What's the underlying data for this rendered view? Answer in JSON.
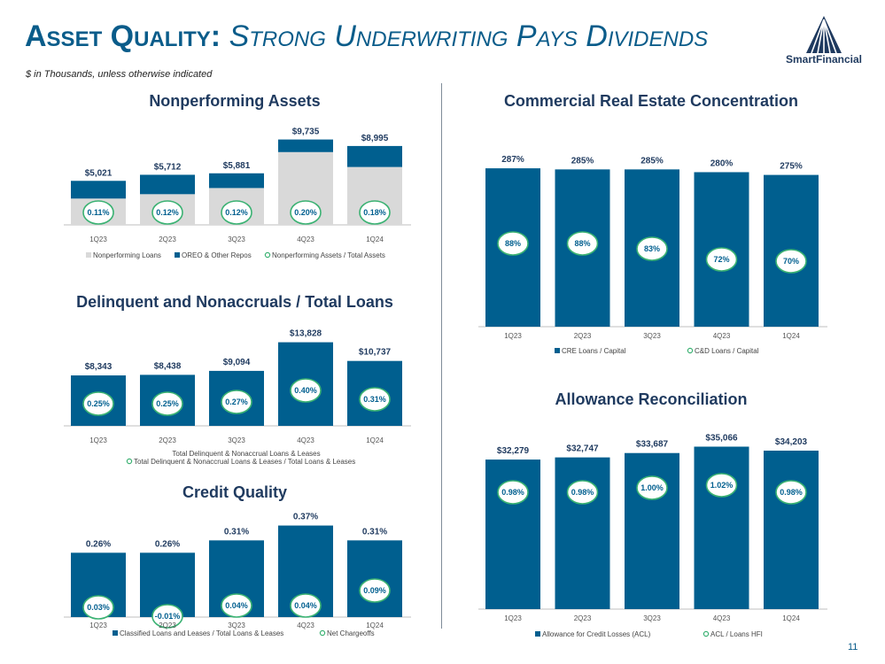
{
  "header": {
    "title_main": "Asset Quality:",
    "title_sub": "Strong Underwriting Pays Dividends",
    "subtitle": "$ in Thousands, unless otherwise indicated",
    "logo_text": "SmartFinancial",
    "page_number": "11"
  },
  "colors": {
    "bar": "#005f8f",
    "light_bar": "#d9d9d9",
    "circle_border": "#3bb273",
    "label": "#1f3a5f"
  },
  "chart_data": [
    {
      "id": "npa",
      "type": "bar",
      "stacked": true,
      "title": "Nonperforming Assets",
      "categories": [
        "1Q23",
        "2Q23",
        "3Q23",
        "4Q23",
        "1Q24"
      ],
      "series": [
        {
          "name": "Nonperforming Loans",
          "values": [
            3000,
            3500,
            4200,
            8300,
            6600
          ]
        },
        {
          "name": "OREO & Other Repos",
          "values": [
            2021,
            2212,
            1681,
            1435,
            2395
          ]
        }
      ],
      "totals": [
        "$5,021",
        "$5,712",
        "$5,881",
        "$9,735",
        "$8,995"
      ],
      "ratio_name": "Nonperforming Assets / Total Assets",
      "ratios": [
        "0.11%",
        "0.12%",
        "0.12%",
        "0.20%",
        "0.18%"
      ],
      "ylim": [
        0,
        10500
      ]
    },
    {
      "id": "dlq",
      "type": "bar",
      "title": "Delinquent and Nonaccruals / Total Loans",
      "categories": [
        "1Q23",
        "2Q23",
        "3Q23",
        "4Q23",
        "1Q24"
      ],
      "series": [
        {
          "name": "Total Delinquent & Nonaccrual Loans & Leases",
          "values": [
            8343,
            8438,
            9094,
            13828,
            10737
          ]
        }
      ],
      "labels": [
        "$8,343",
        "$8,438",
        "$9,094",
        "$13,828",
        "$10,737"
      ],
      "ratio_name": "Total Delinquent & Nonaccrual Loans & Leases / Total Loans & Leases",
      "ratios": [
        "0.25%",
        "0.25%",
        "0.27%",
        "0.40%",
        "0.31%"
      ],
      "ylim": [
        0,
        14500
      ]
    },
    {
      "id": "cq",
      "type": "bar",
      "title": "Credit Quality",
      "categories": [
        "1Q23",
        "2Q23",
        "3Q23",
        "4Q23",
        "1Q24"
      ],
      "series": [
        {
          "name": "Classified Loans and Leases / Total Loans & Leases",
          "values": [
            0.26,
            0.26,
            0.31,
            0.37,
            0.31
          ]
        }
      ],
      "labels": [
        "0.26%",
        "0.26%",
        "0.31%",
        "0.37%",
        "0.31%"
      ],
      "ratio_name": "Net Chargeoffs",
      "ratios": [
        "0.03%",
        "-0.01%",
        "0.04%",
        "0.04%",
        "0.09%"
      ],
      "ylim": [
        0,
        0.39
      ]
    },
    {
      "id": "cre",
      "type": "bar",
      "title": "Commercial Real Estate Concentration",
      "categories": [
        "1Q23",
        "2Q23",
        "3Q23",
        "4Q23",
        "1Q24"
      ],
      "series": [
        {
          "name": "CRE Loans / Capital",
          "values": [
            287,
            285,
            285,
            280,
            275
          ]
        }
      ],
      "labels": [
        "287%",
        "285%",
        "285%",
        "280%",
        "275%"
      ],
      "ratio_name": "C&D Loans / Capital",
      "ratios": [
        "88%",
        "88%",
        "83%",
        "72%",
        "70%"
      ],
      "ylim": [
        0,
        300
      ]
    },
    {
      "id": "acl",
      "type": "bar",
      "title": "Allowance Reconciliation",
      "categories": [
        "1Q23",
        "2Q23",
        "3Q23",
        "4Q23",
        "1Q24"
      ],
      "series": [
        {
          "name": "Allowance for Credit Losses (ACL)",
          "values": [
            32279,
            32747,
            33687,
            35066,
            34203
          ]
        }
      ],
      "labels": [
        "$32,279",
        "$32,747",
        "$33,687",
        "$35,066",
        "$34,203"
      ],
      "ratio_name": "ACL / Loans HFI",
      "ratios": [
        "0.98%",
        "0.98%",
        "1.00%",
        "1.02%",
        "0.98%"
      ],
      "ylim": [
        0,
        36500
      ]
    }
  ]
}
